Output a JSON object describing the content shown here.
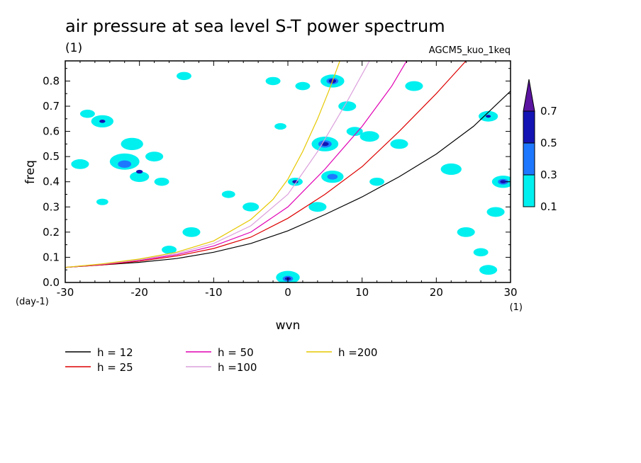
{
  "chart_data": {
    "type": "line",
    "title": "air pressure at sea level S-T power spectrum",
    "title_unit": "(1)",
    "subtitle": "AGCM5_kuo_1keq",
    "xlabel": "wvn",
    "ylabel": "freq",
    "x_unit": "(1)",
    "y_unit": "(day-1)",
    "xlim": [
      -30,
      30
    ],
    "ylim": [
      0,
      0.88
    ],
    "x_ticks": [
      -30,
      -20,
      -10,
      0,
      10,
      20,
      30
    ],
    "y_ticks": [
      0.0,
      0.1,
      0.2,
      0.3,
      0.4,
      0.5,
      0.6,
      0.7,
      0.8
    ],
    "x_tick_labels": [
      "-30",
      "-20",
      "-10",
      "0",
      "10",
      "20",
      "30"
    ],
    "y_tick_labels": [
      "0.0",
      "0.1",
      "0.2",
      "0.3",
      "0.4",
      "0.5",
      "0.6",
      "0.7",
      "0.8"
    ],
    "series": [
      {
        "name": "h = 12",
        "color": "#000000",
        "x": [
          -30,
          -25,
          -20,
          -15,
          -10,
          -5,
          0,
          5,
          10,
          15,
          20,
          25,
          30
        ],
        "y": [
          0.06,
          0.07,
          0.08,
          0.095,
          0.12,
          0.155,
          0.205,
          0.27,
          0.34,
          0.42,
          0.51,
          0.62,
          0.76
        ]
      },
      {
        "name": "h = 25",
        "color": "#dd0000",
        "x": [
          -30,
          -25,
          -20,
          -15,
          -10,
          -5,
          0,
          5,
          10,
          15,
          20,
          24
        ],
        "y": [
          0.06,
          0.07,
          0.085,
          0.105,
          0.135,
          0.18,
          0.255,
          0.35,
          0.46,
          0.6,
          0.75,
          0.88
        ]
      },
      {
        "name": "h = 50",
        "color": "#e000b4",
        "x": [
          -30,
          -25,
          -20,
          -15,
          -10,
          -5,
          0,
          5,
          10,
          14,
          16
        ],
        "y": [
          0.06,
          0.072,
          0.088,
          0.11,
          0.145,
          0.2,
          0.3,
          0.45,
          0.62,
          0.78,
          0.88
        ]
      },
      {
        "name": "h =100",
        "color": "#dca0dc",
        "x": [
          -30,
          -25,
          -20,
          -15,
          -10,
          -5,
          0,
          4,
          8,
          11
        ],
        "y": [
          0.06,
          0.073,
          0.09,
          0.115,
          0.155,
          0.225,
          0.35,
          0.52,
          0.72,
          0.88
        ]
      },
      {
        "name": "h =200",
        "color": "#e6c800",
        "x": [
          -30,
          -25,
          -20,
          -15,
          -10,
          -5,
          -2,
          0,
          2,
          4,
          5.5,
          7
        ],
        "y": [
          0.06,
          0.074,
          0.093,
          0.12,
          0.165,
          0.25,
          0.33,
          0.41,
          0.52,
          0.65,
          0.76,
          0.88
        ]
      }
    ],
    "contour_levels": [
      0.1,
      0.3,
      0.5,
      0.7
    ],
    "contour_colors": [
      "#00f0f0",
      "#1e78ff",
      "#1414b4",
      "#5a14a0"
    ],
    "contour_patches": [
      {
        "x": -28,
        "y": 0.47,
        "r": 1.2,
        "level": 1
      },
      {
        "x": -27,
        "y": 0.67,
        "r": 1.0,
        "level": 1
      },
      {
        "x": -25,
        "y": 0.64,
        "r": 1.5,
        "level": 1
      },
      {
        "x": -25,
        "y": 0.32,
        "r": 0.8,
        "level": 1
      },
      {
        "x": -22,
        "y": 0.48,
        "r": 2.0,
        "level": 1
      },
      {
        "x": -21,
        "y": 0.55,
        "r": 1.5,
        "level": 1
      },
      {
        "x": -20,
        "y": 0.42,
        "r": 1.3,
        "level": 1
      },
      {
        "x": -18,
        "y": 0.5,
        "r": 1.2,
        "level": 1
      },
      {
        "x": -17,
        "y": 0.4,
        "r": 1.0,
        "level": 1
      },
      {
        "x": -13,
        "y": 0.2,
        "r": 1.2,
        "level": 1
      },
      {
        "x": -16,
        "y": 0.13,
        "r": 1.0,
        "level": 1
      },
      {
        "x": -14,
        "y": 0.82,
        "r": 1.0,
        "level": 1
      },
      {
        "x": -8,
        "y": 0.35,
        "r": 0.9,
        "level": 1
      },
      {
        "x": -5,
        "y": 0.3,
        "r": 1.1,
        "level": 1
      },
      {
        "x": -2,
        "y": 0.8,
        "r": 1.0,
        "level": 1
      },
      {
        "x": -1,
        "y": 0.62,
        "r": 0.8,
        "level": 1
      },
      {
        "x": 0,
        "y": 0.02,
        "r": 1.6,
        "level": 1
      },
      {
        "x": 1,
        "y": 0.4,
        "r": 1.0,
        "level": 1
      },
      {
        "x": 2,
        "y": 0.78,
        "r": 1.0,
        "level": 1
      },
      {
        "x": 4,
        "y": 0.3,
        "r": 1.2,
        "level": 1
      },
      {
        "x": 5,
        "y": 0.55,
        "r": 1.8,
        "level": 1
      },
      {
        "x": 6,
        "y": 0.8,
        "r": 1.6,
        "level": 1
      },
      {
        "x": 6,
        "y": 0.42,
        "r": 1.5,
        "level": 1
      },
      {
        "x": 8,
        "y": 0.7,
        "r": 1.2,
        "level": 1
      },
      {
        "x": 9,
        "y": 0.6,
        "r": 1.1,
        "level": 1
      },
      {
        "x": 11,
        "y": 0.58,
        "r": 1.3,
        "level": 1
      },
      {
        "x": 12,
        "y": 0.4,
        "r": 1.0,
        "level": 1
      },
      {
        "x": 15,
        "y": 0.55,
        "r": 1.2,
        "level": 1
      },
      {
        "x": 17,
        "y": 0.78,
        "r": 1.2,
        "level": 1
      },
      {
        "x": 22,
        "y": 0.45,
        "r": 1.4,
        "level": 1
      },
      {
        "x": 24,
        "y": 0.2,
        "r": 1.2,
        "level": 1
      },
      {
        "x": 27,
        "y": 0.05,
        "r": 1.2,
        "level": 1
      },
      {
        "x": 27,
        "y": 0.66,
        "r": 1.3,
        "level": 1
      },
      {
        "x": 29,
        "y": 0.4,
        "r": 1.5,
        "level": 1
      },
      {
        "x": 28,
        "y": 0.28,
        "r": 1.2,
        "level": 1
      },
      {
        "x": 26,
        "y": 0.12,
        "r": 1.0,
        "level": 1
      },
      {
        "x": -22,
        "y": 0.47,
        "r": 0.9,
        "level": 2
      },
      {
        "x": 5,
        "y": 0.55,
        "r": 0.9,
        "level": 2
      },
      {
        "x": 6,
        "y": 0.8,
        "r": 0.8,
        "level": 2
      },
      {
        "x": 6,
        "y": 0.42,
        "r": 0.7,
        "level": 2
      },
      {
        "x": 0,
        "y": 0.015,
        "r": 0.7,
        "level": 2
      },
      {
        "x": 29,
        "y": 0.4,
        "r": 0.7,
        "level": 2
      },
      {
        "x": 6,
        "y": 0.8,
        "r": 0.5,
        "level": 3
      },
      {
        "x": 5,
        "y": 0.55,
        "r": 0.5,
        "level": 3
      },
      {
        "x": -25,
        "y": 0.64,
        "r": 0.4,
        "level": 3
      },
      {
        "x": -20,
        "y": 0.44,
        "r": 0.45,
        "level": 3
      },
      {
        "x": 0,
        "y": 0.015,
        "r": 0.4,
        "level": 3
      },
      {
        "x": 1,
        "y": 0.4,
        "r": 0.4,
        "level": 3
      },
      {
        "x": 29,
        "y": 0.4,
        "r": 0.4,
        "level": 3
      },
      {
        "x": 27,
        "y": 0.66,
        "r": 0.35,
        "level": 3
      }
    ],
    "colorbar_labels": [
      "0.1",
      "0.3",
      "0.5",
      "0.7"
    ],
    "grid": false,
    "legend_position": "bottom"
  }
}
